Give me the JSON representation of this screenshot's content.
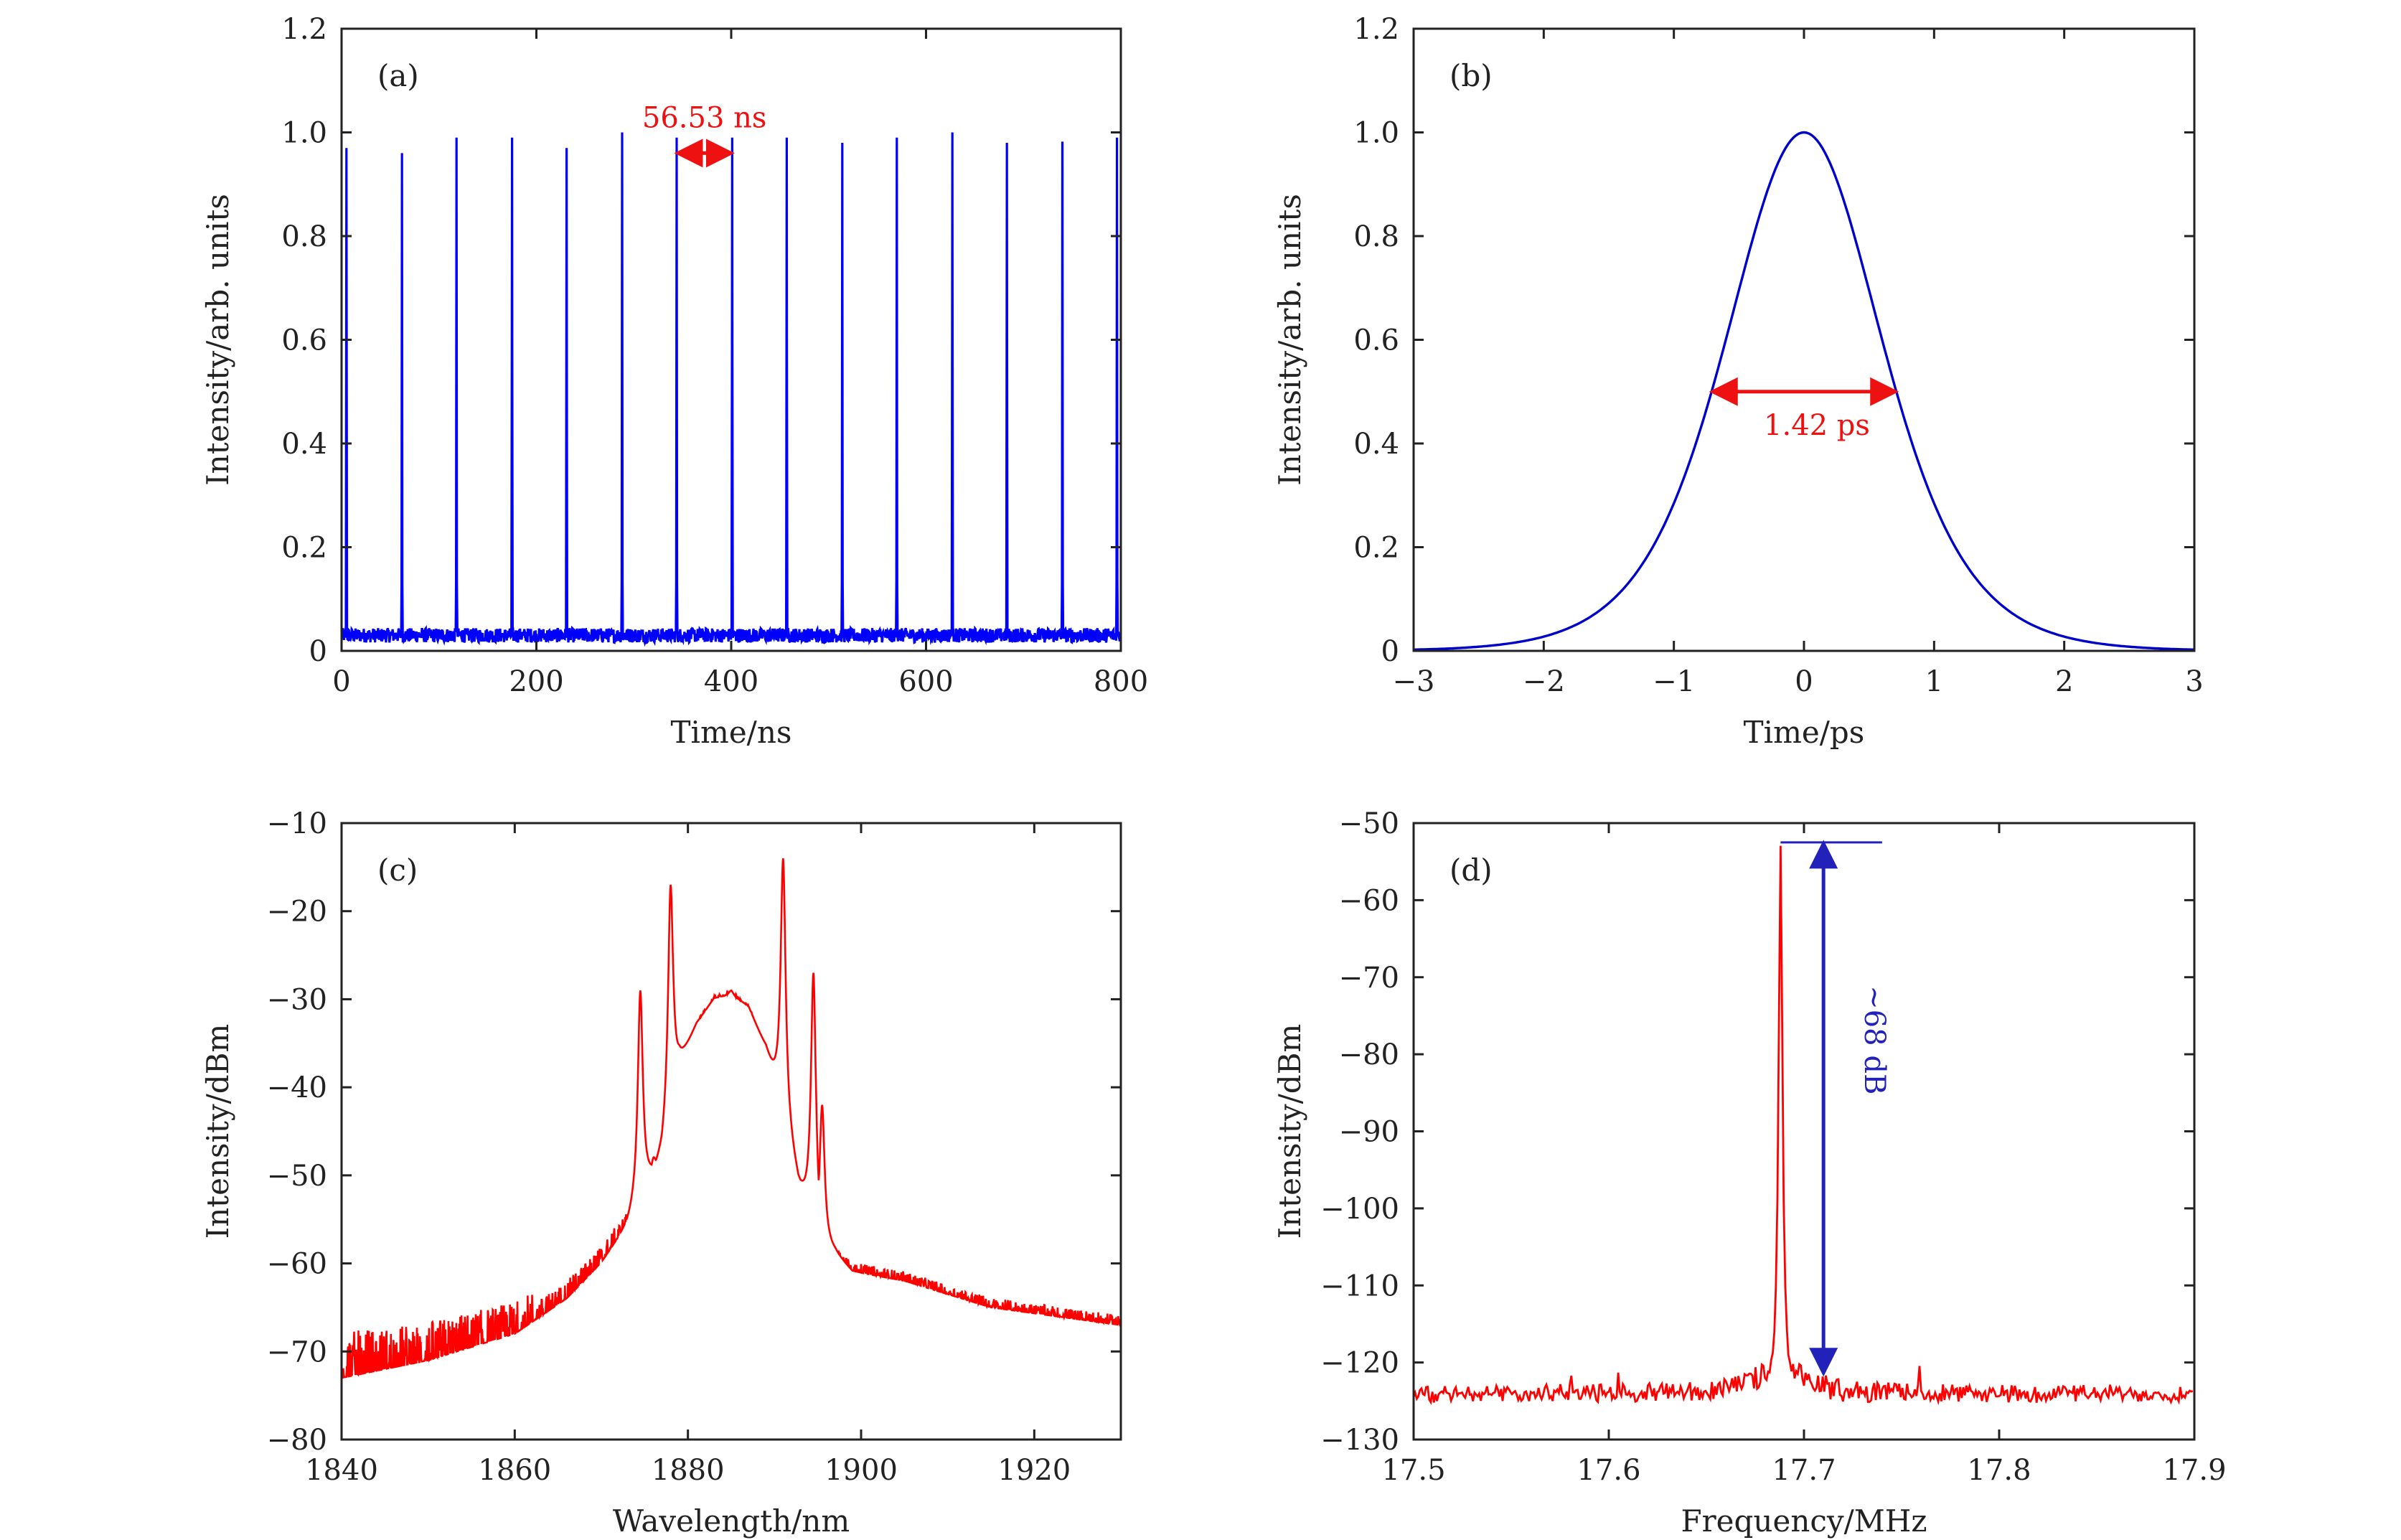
{
  "chart_data": [
    {
      "panel": "(a)",
      "type": "line",
      "xlabel": "Time/ns",
      "ylabel": "Intensity/arb. units",
      "xlim": [
        0,
        800
      ],
      "ylim": [
        0,
        1.2
      ],
      "xticks": [
        0,
        200,
        400,
        600,
        800
      ],
      "yticks": [
        0,
        0.2,
        0.4,
        0.6,
        0.8,
        1.0,
        1.2
      ],
      "xtick_labels": [
        "0",
        "200",
        "400",
        "600",
        "800"
      ],
      "ytick_labels": [
        "0",
        "0.2",
        "0.4",
        "0.6",
        "0.8",
        "1.0",
        "1.2"
      ],
      "series": [
        {
          "color": "#0000ff",
          "pulse_times": [
            5,
            62,
            118,
            175,
            231,
            288,
            344,
            401,
            457,
            514,
            570,
            627,
            683,
            740,
            796
          ],
          "pulse_peaks": [
            0.97,
            0.96,
            0.99,
            0.99,
            0.97,
            1.0,
            0.99,
            0.99,
            0.99,
            0.98,
            0.99,
            1.0,
            0.98,
            0.98,
            0.99
          ],
          "baseline": 0.03
        }
      ],
      "annotations": [
        {
          "text": "56.53 ns",
          "color": "#ee1111",
          "x_from": 344,
          "x_to": 401,
          "y": 0.96
        }
      ],
      "grid": false
    },
    {
      "panel": "(b)",
      "type": "line",
      "xlabel": "Time/ps",
      "ylabel": "Intensity/arb. units",
      "xlim": [
        -3,
        3
      ],
      "ylim": [
        0,
        1.2
      ],
      "xticks": [
        -3,
        -2,
        -1,
        0,
        1,
        2,
        3
      ],
      "yticks": [
        0,
        0.2,
        0.4,
        0.6,
        0.8,
        1.0,
        1.2
      ],
      "xtick_labels": [
        "−3",
        "−2",
        "−1",
        "0",
        "1",
        "2",
        "3"
      ],
      "ytick_labels": [
        "0",
        "0.2",
        "0.4",
        "0.6",
        "0.8",
        "1.0",
        "1.2"
      ],
      "series": [
        {
          "color": "#0000cc",
          "shape": "sech2",
          "center": 0,
          "fwhm": 1.42,
          "peak": 1.0
        }
      ],
      "annotations": [
        {
          "text": "1.42 ps",
          "color": "#ee1111",
          "x_from": -0.71,
          "x_to": 0.71,
          "y": 0.5
        }
      ],
      "grid": false
    },
    {
      "panel": "(c)",
      "type": "line",
      "xlabel": "Wavelength/nm",
      "ylabel": "Intensity/dBm",
      "xlim": [
        1840,
        1930
      ],
      "ylim": [
        -80,
        -10
      ],
      "xticks": [
        1840,
        1860,
        1880,
        1900,
        1920
      ],
      "yticks": [
        -80,
        -70,
        -60,
        -50,
        -40,
        -30,
        -20,
        -10
      ],
      "xtick_labels": [
        "1840",
        "1860",
        "1880",
        "1900",
        "1920"
      ],
      "ytick_labels": [
        "−80",
        "−70",
        "−60",
        "−50",
        "−40",
        "−30",
        "−20",
        "−10"
      ],
      "series": [
        {
          "color": "#ff0000",
          "envelope_x": [
            1840,
            1850,
            1860,
            1866,
            1870,
            1873,
            1875,
            1877,
            1879,
            1881,
            1883,
            1885,
            1887,
            1889,
            1891,
            1893,
            1895,
            1897,
            1899,
            1905,
            1915,
            1930
          ],
          "envelope_y": [
            -73,
            -71,
            -68,
            -64,
            -60,
            -56,
            -52,
            -48,
            -38,
            -33,
            -30,
            -29.5,
            -31,
            -36,
            -44,
            -52,
            -58,
            -59,
            -61,
            -62,
            -65,
            -67
          ],
          "spikes": [
            [
              1874.5,
              -29
            ],
            [
              1876,
              -48
            ],
            [
              1878,
              -17
            ],
            [
              1883.5,
              -30
            ],
            [
              1885,
              -29
            ],
            [
              1891,
              -14
            ],
            [
              1894.5,
              -27
            ],
            [
              1895.5,
              -42
            ]
          ]
        }
      ],
      "grid": false
    },
    {
      "panel": "(d)",
      "type": "line",
      "xlabel": "Frequency/MHz",
      "ylabel": "Intensity/dBm",
      "xlim": [
        17.5,
        17.9
      ],
      "ylim": [
        -130,
        -50
      ],
      "xticks": [
        17.5,
        17.6,
        17.7,
        17.8,
        17.9
      ],
      "yticks": [
        -130,
        -120,
        -110,
        -100,
        -90,
        -80,
        -70,
        -60,
        -50
      ],
      "xtick_labels": [
        "17.5",
        "17.6",
        "17.7",
        "17.8",
        "17.9"
      ],
      "ytick_labels": [
        "−130",
        "−120",
        "−110",
        "−100",
        "−90",
        "−80",
        "−70",
        "−60",
        "−50"
      ],
      "series": [
        {
          "color": "#ff0000",
          "peak_x": 17.688,
          "peak_y": -53,
          "floor": -124.5
        }
      ],
      "annotations": [
        {
          "text": "~68 dB",
          "color": "#2222bb",
          "x": 17.71,
          "y_from": -52.5,
          "y_to": -121.5,
          "hline_x": [
            17.688,
            17.74
          ]
        }
      ],
      "grid": false
    }
  ]
}
